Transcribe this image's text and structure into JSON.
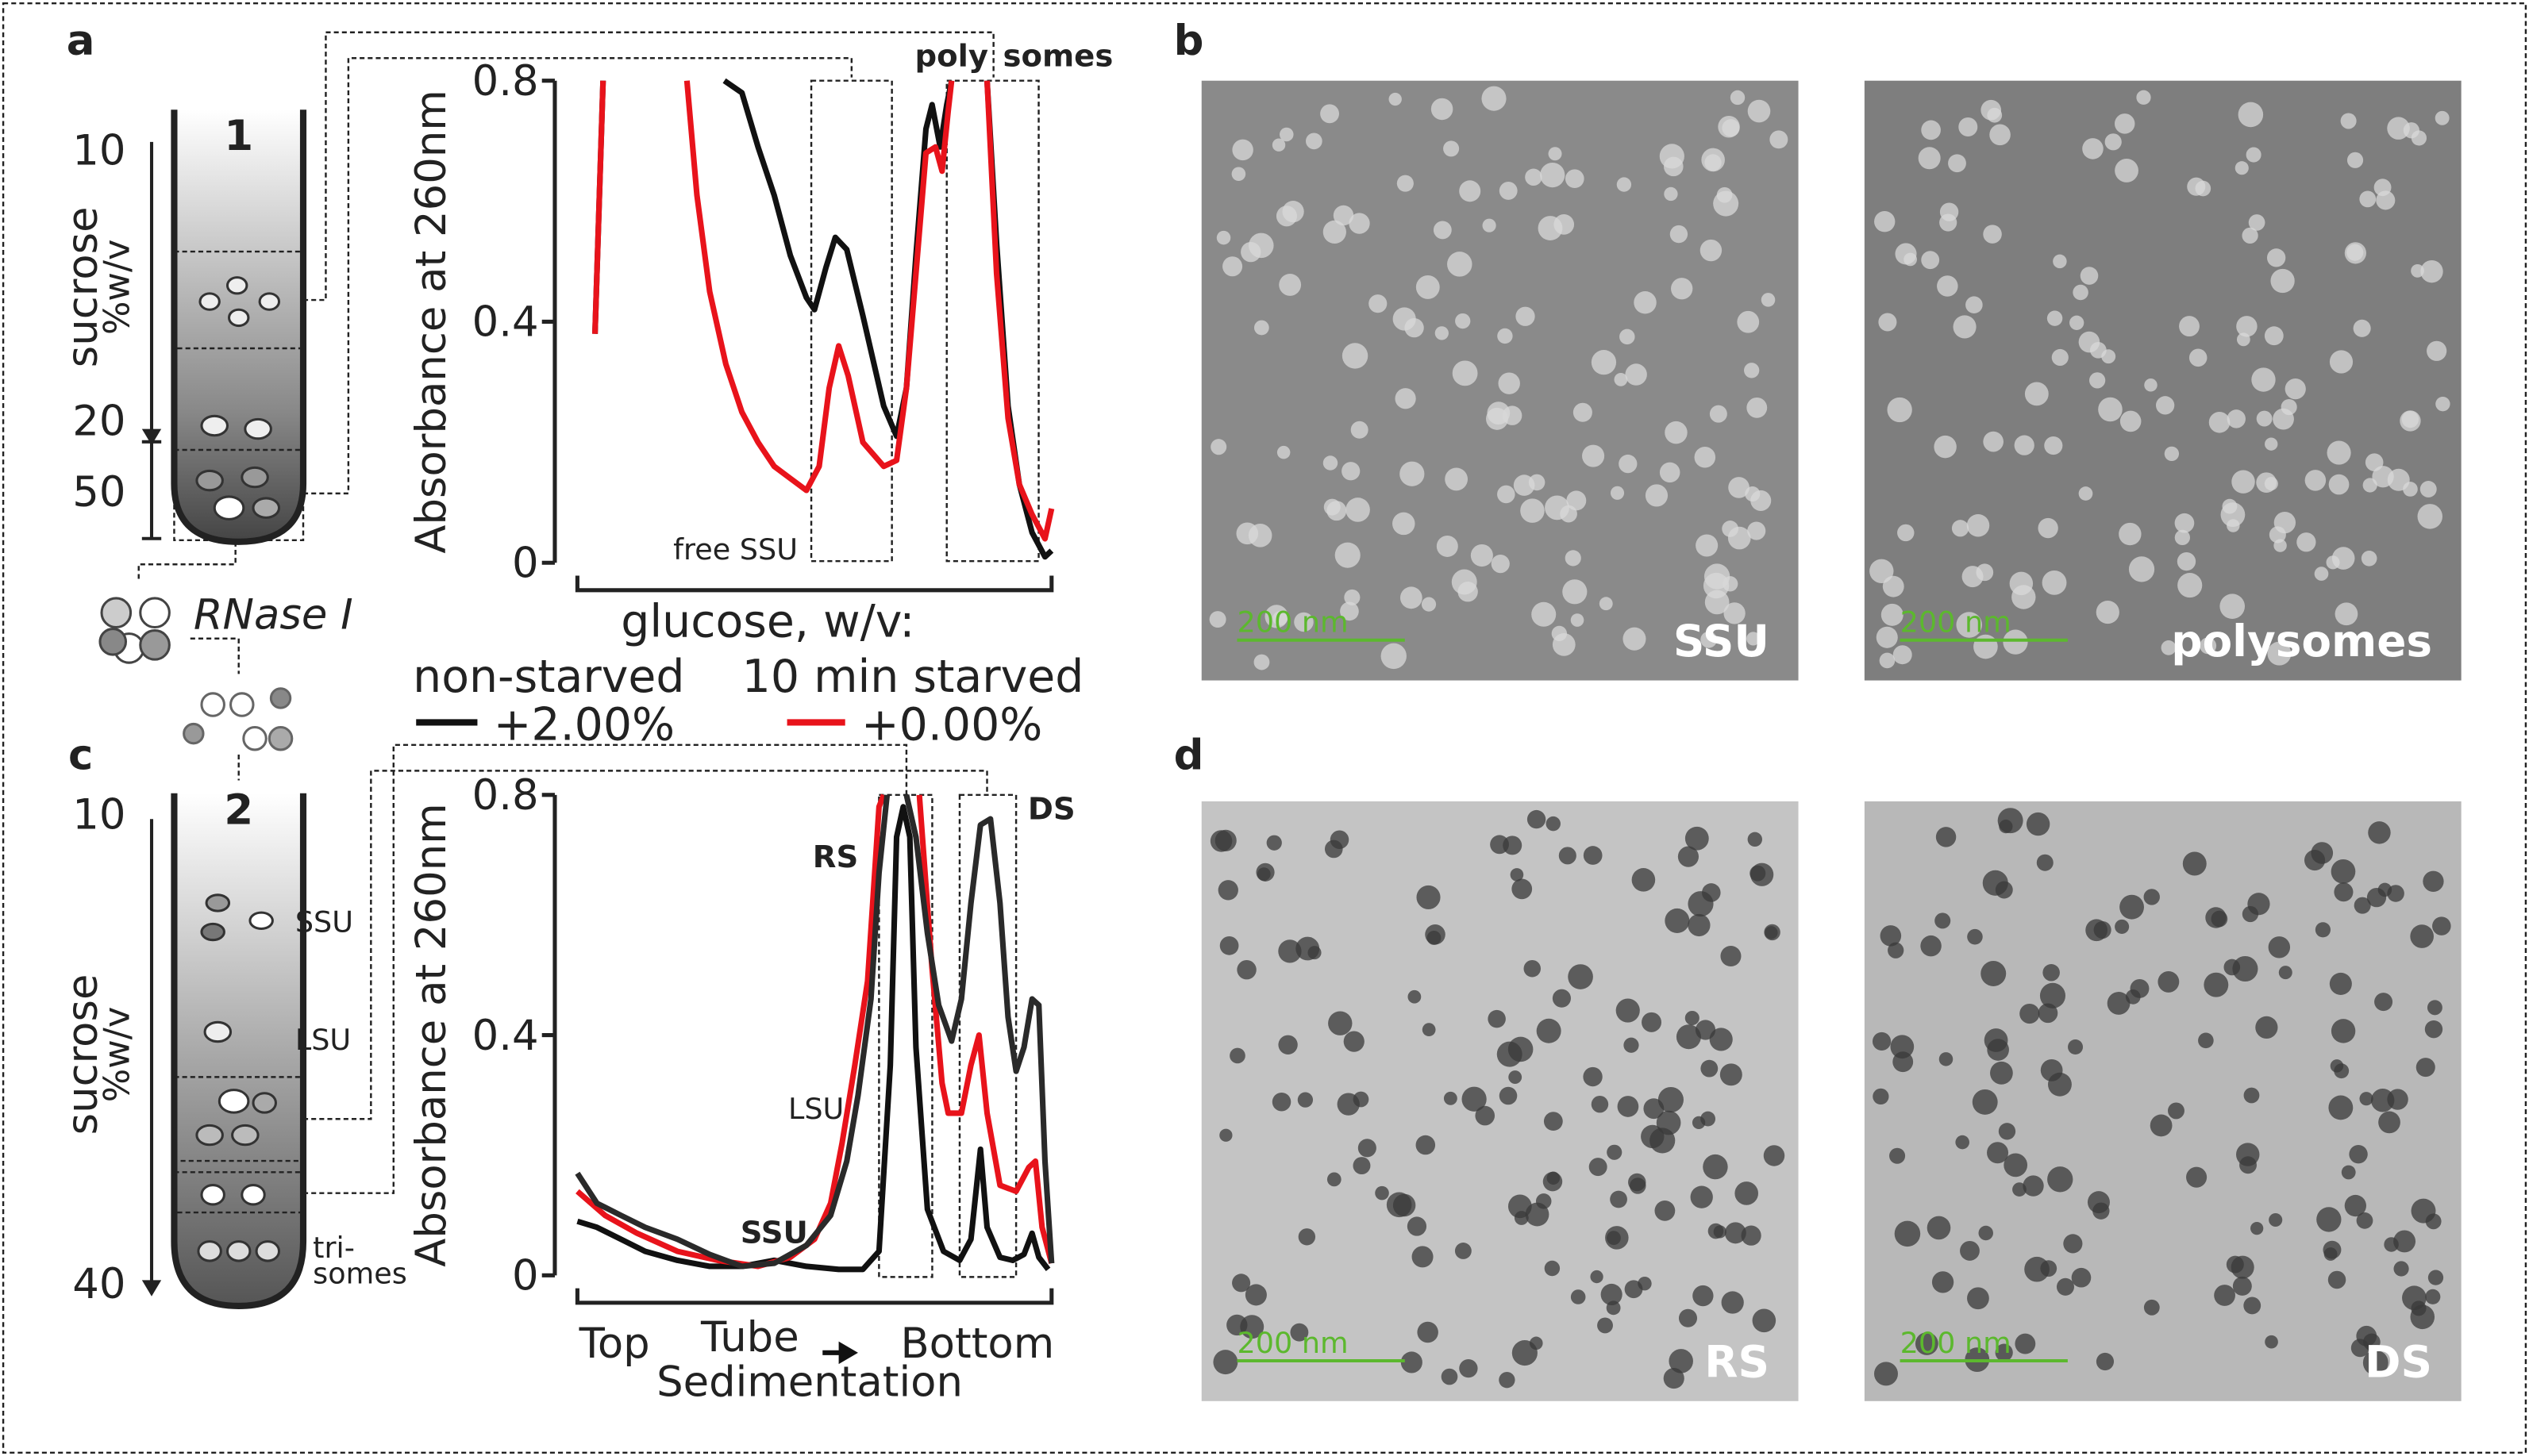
{
  "panel_letters": [
    "a",
    "b",
    "c",
    "d"
  ],
  "tube1": {
    "number": "1",
    "ticks": [
      "10",
      "20",
      "50"
    ],
    "axis_label": [
      "sucrose",
      "%w/v"
    ]
  },
  "enzyme": "RNase I",
  "tube2": {
    "number": "2",
    "ticks": [
      "10",
      "40"
    ],
    "axis_label": [
      "sucrose",
      "%w/v"
    ],
    "bands": [
      "SSU",
      "LSU",
      "tri-",
      "somes"
    ]
  },
  "micrographs": [
    {
      "label": "SSU",
      "scale": "200 nm"
    },
    {
      "label": "polysomes",
      "scale": "200 nm"
    },
    {
      "label": "RS",
      "scale": "200 nm"
    },
    {
      "label": "DS",
      "scale": "200 nm"
    }
  ],
  "chart_data": [
    {
      "type": "line",
      "ylabel": "Absorbance at 260nm",
      "ylim": [
        0,
        0.8
      ],
      "yticks": [
        0,
        0.4,
        0.8
      ],
      "xlim": [
        0,
        100
      ],
      "legend_title": "glucose, w/v:",
      "annotations": [
        "free SSU",
        "poly",
        "somes"
      ],
      "series": [
        {
          "name": "+2.00%",
          "group": "non-starved",
          "color": "#111111",
          "x": [
            3.7,
            5.4,
            18,
            31,
            34.7,
            38.1,
            41.5,
            44.9,
            48.3,
            50,
            52.4,
            54.4,
            56.8,
            60.2,
            64.6,
            67.3,
            69.4,
            71.4,
            73.5,
            74.8,
            76.5,
            77.9,
            78.9,
            82,
            86.4,
            88.4,
            90.8,
            93.2,
            95.9,
            98.6,
            100
          ],
          "values": [
            0.38,
            0.8,
            null,
            0.8,
            0.78,
            0.69,
            0.61,
            0.51,
            0.44,
            0.42,
            0.49,
            0.54,
            0.52,
            0.41,
            0.26,
            0.21,
            0.29,
            0.51,
            0.72,
            0.76,
            0.69,
            0.76,
            0.8,
            null,
            0.8,
            0.53,
            0.26,
            0.13,
            0.05,
            0.01,
            0.02
          ]
        },
        {
          "name": "+0.00%",
          "group": "10 min starved",
          "color": "#e8131b",
          "x": [
            3.7,
            5.4,
            14,
            23.1,
            25.2,
            27.9,
            31.3,
            34.7,
            38.1,
            41.5,
            44.9,
            48.3,
            51,
            53.1,
            55.1,
            57.1,
            60.2,
            64.6,
            67.3,
            69.4,
            71.4,
            73.5,
            75.5,
            76.9,
            78.2,
            78.9,
            82,
            86.4,
            88.4,
            90.8,
            93.2,
            95.9,
            98.6,
            100
          ],
          "values": [
            0.38,
            0.8,
            null,
            0.8,
            0.61,
            0.45,
            0.33,
            0.25,
            0.2,
            0.16,
            0.14,
            0.12,
            0.16,
            0.29,
            0.36,
            0.31,
            0.2,
            0.16,
            0.17,
            0.29,
            0.48,
            0.68,
            0.69,
            0.65,
            0.75,
            0.8,
            null,
            0.8,
            0.48,
            0.24,
            0.13,
            0.08,
            0.04,
            0.09
          ]
        }
      ]
    },
    {
      "type": "line",
      "ylabel": "Absorbance at 260nm",
      "ylim": [
        0,
        0.8
      ],
      "yticks": [
        0,
        0.4,
        0.8
      ],
      "xlim": [
        0,
        100
      ],
      "xlabels": [
        "Top",
        "Tube",
        "Bottom"
      ],
      "xlabel": "Sedimentation",
      "annotations": [
        "RS",
        "DS",
        "LSU",
        "SSU"
      ],
      "series": [
        {
          "color": "#111111",
          "x": [
            0,
            4.1,
            9.2,
            14.3,
            21.1,
            27.9,
            34.7,
            41.5,
            48.3,
            55.1,
            60.2,
            63.6,
            66,
            67.3,
            68.7,
            70.1,
            71.4,
            73.8,
            77.2,
            80.6,
            83,
            85,
            86.4,
            89.1,
            91.8,
            94.2,
            95.9,
            97.3,
            99.3
          ],
          "values": [
            0.09,
            0.08,
            0.06,
            0.04,
            0.025,
            0.015,
            0.015,
            0.025,
            0.015,
            0.01,
            0.01,
            0.04,
            0.35,
            0.73,
            0.78,
            0.73,
            0.38,
            0.11,
            0.04,
            0.025,
            0.06,
            0.21,
            0.08,
            0.03,
            0.025,
            0.035,
            0.07,
            0.03,
            0.01
          ]
        },
        {
          "color": "#e8131b",
          "x": [
            0,
            5.8,
            12.6,
            21.1,
            29.6,
            38.1,
            44.9,
            50,
            53.4,
            55.8,
            58.5,
            61.2,
            63.6,
            64.6,
            68,
            72.1,
            74.8,
            76.9,
            78.2,
            81,
            83,
            84.7,
            86.4,
            89.1,
            92.5,
            95.2,
            96.6,
            98,
            100
          ],
          "values": [
            0.14,
            0.1,
            0.07,
            0.04,
            0.025,
            0.015,
            0.03,
            0.06,
            0.12,
            0.22,
            0.35,
            0.49,
            0.78,
            0.8,
            null,
            0.8,
            0.51,
            0.32,
            0.27,
            0.27,
            0.35,
            0.4,
            0.27,
            0.15,
            0.14,
            0.18,
            0.19,
            0.08,
            0.02
          ]
        },
        {
          "color": "#2a2a2a",
          "x": [
            0,
            4.1,
            9.2,
            14.3,
            21.1,
            27.9,
            34.7,
            41.5,
            48.3,
            53.4,
            56.8,
            59.2,
            61.9,
            63.6,
            65.3,
            67,
            69.4,
            71.4,
            73.8,
            76.2,
            78.9,
            81,
            83,
            85,
            87.1,
            89.1,
            90.8,
            92.5,
            94.2,
            95.9,
            97.3,
            98.6,
            100
          ],
          "values": [
            0.17,
            0.12,
            0.1,
            0.08,
            0.06,
            0.035,
            0.015,
            0.02,
            0.05,
            0.1,
            0.19,
            0.3,
            0.46,
            0.67,
            0.8,
            null,
            0.8,
            0.73,
            0.57,
            0.45,
            0.39,
            0.46,
            0.62,
            0.75,
            0.76,
            0.62,
            0.43,
            0.34,
            0.38,
            0.46,
            0.45,
            0.19,
            0.02
          ]
        }
      ]
    }
  ]
}
